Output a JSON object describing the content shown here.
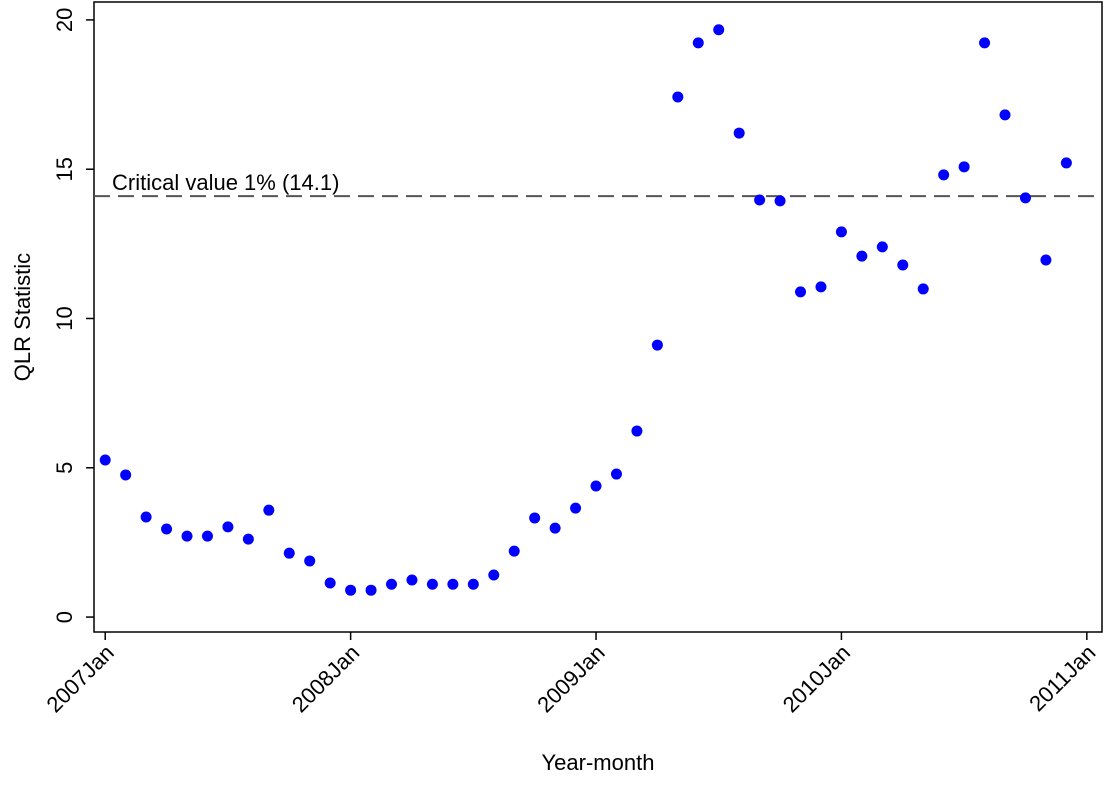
{
  "chart_data": {
    "type": "scatter",
    "x_label": "Year-month",
    "y_label": "QLR Statistic",
    "x": [
      "2007-01",
      "2007-02",
      "2007-03",
      "2007-04",
      "2007-05",
      "2007-06",
      "2007-07",
      "2007-08",
      "2007-09",
      "2007-10",
      "2007-11",
      "2007-12",
      "2008-01",
      "2008-02",
      "2008-03",
      "2008-04",
      "2008-05",
      "2008-06",
      "2008-07",
      "2008-08",
      "2008-09",
      "2008-10",
      "2008-11",
      "2008-12",
      "2009-01",
      "2009-02",
      "2009-03",
      "2009-04",
      "2009-05",
      "2009-06",
      "2009-07",
      "2009-08",
      "2009-09",
      "2009-10",
      "2009-11",
      "2009-12",
      "2010-01",
      "2010-02",
      "2010-03",
      "2010-04",
      "2010-05",
      "2010-06",
      "2010-07",
      "2010-08",
      "2010-09",
      "2010-10",
      "2010-11",
      "2010-12"
    ],
    "values": [
      5.26,
      4.76,
      3.35,
      2.95,
      2.71,
      2.71,
      3.02,
      2.61,
      3.58,
      2.14,
      1.88,
      1.14,
      0.9,
      0.9,
      1.1,
      1.24,
      1.1,
      1.1,
      1.1,
      1.41,
      2.21,
      3.32,
      2.98,
      3.65,
      4.39,
      4.79,
      6.23,
      9.11,
      17.42,
      19.23,
      19.67,
      16.21,
      13.97,
      13.94,
      10.89,
      11.06,
      12.9,
      12.09,
      12.4,
      11.79,
      10.99,
      14.81,
      15.08,
      19.23,
      16.82,
      14.04,
      11.96,
      15.21
    ],
    "color": "#0000ff",
    "xlim": [
      "2006-12-15",
      "2011-01-24"
    ],
    "xticks": [
      {
        "value": "2007-01",
        "label": "2007Jan"
      },
      {
        "value": "2008-01",
        "label": "2008Jan"
      },
      {
        "value": "2009-01",
        "label": "2009Jan"
      },
      {
        "value": "2010-01",
        "label": "2010Jan"
      },
      {
        "value": "2011-01",
        "label": "2011Jan"
      }
    ],
    "ylim": [
      -0.5,
      20.6
    ],
    "yticks": [
      0,
      5,
      10,
      15,
      20
    ],
    "hline": {
      "value": 14.1,
      "label": "Critical value 1% (14.1)",
      "color": "#555555"
    }
  }
}
